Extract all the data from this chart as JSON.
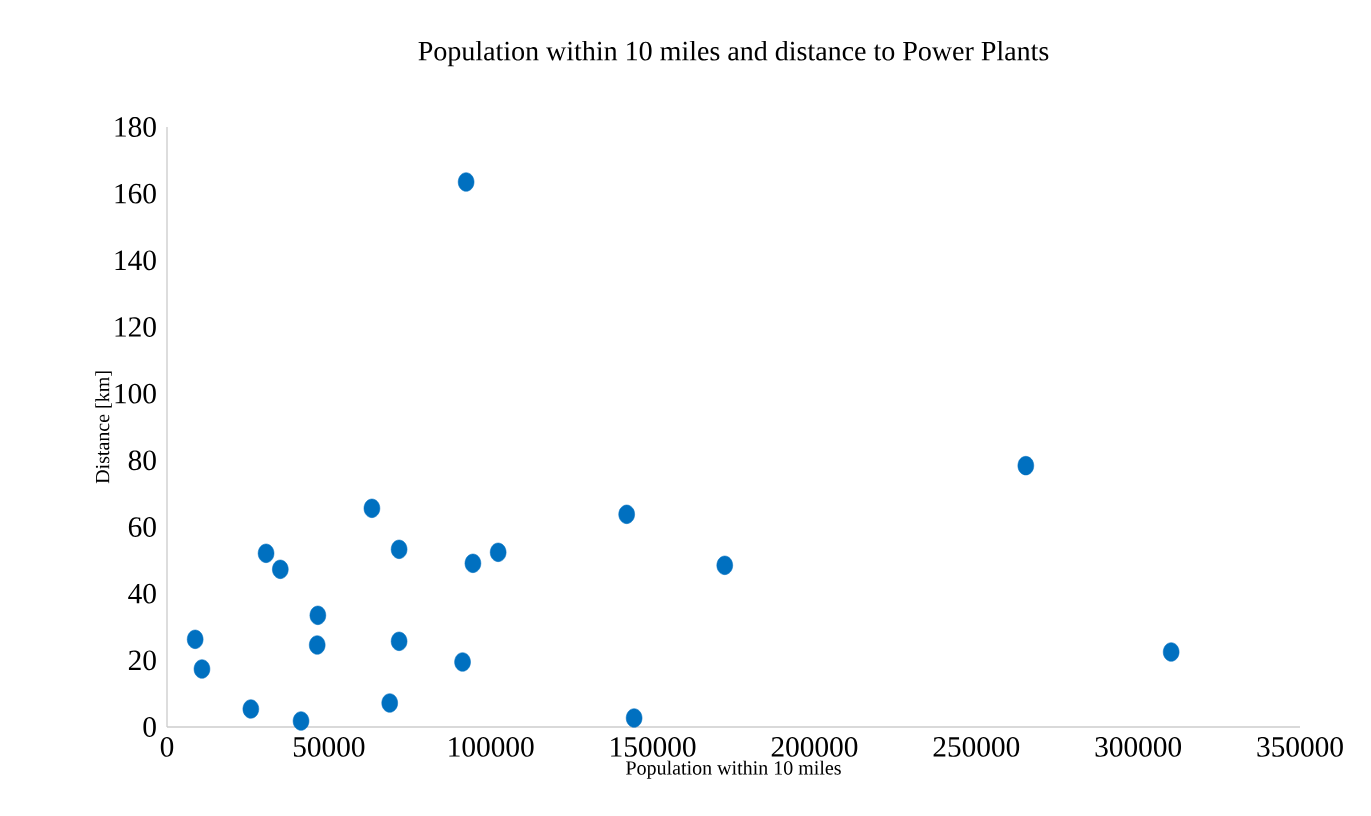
{
  "chart_data": {
    "type": "scatter",
    "title": "Population within 10 miles  and distance to Power Plants",
    "xlabel": "Population within 10 miles",
    "ylabel": "Distance [km]",
    "x": [
      8700,
      10800,
      25900,
      30600,
      35000,
      41400,
      46600,
      46400,
      63300,
      71700,
      71700,
      68800,
      92400,
      91300,
      94500,
      102300,
      142000,
      144300,
      172300,
      265300,
      310200
    ],
    "values": [
      26.3,
      17.4,
      5.4,
      52.1,
      47.3,
      1.8,
      33.5,
      24.6,
      65.6,
      53.3,
      25.7,
      7.2,
      163.5,
      19.5,
      49.1,
      52.4,
      63.8,
      2.7,
      48.5,
      78.4,
      22.5
    ],
    "color": "#0070c0",
    "marker": "circle",
    "grid": false,
    "xlim": [
      0,
      350000
    ],
    "xticks": [
      0,
      50000,
      100000,
      150000,
      200000,
      250000,
      300000,
      350000
    ],
    "ylim": [
      0,
      180
    ],
    "yticks": [
      0,
      20,
      40,
      60,
      80,
      100,
      120,
      140,
      160,
      180
    ]
  }
}
